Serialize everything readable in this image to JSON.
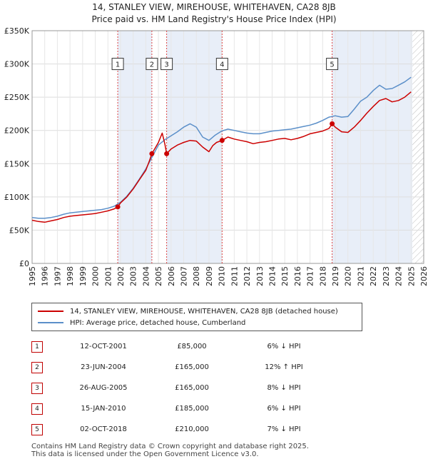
{
  "chart_data": {
    "type": "line",
    "title": "14, STANLEY VIEW, MIREHOUSE, WHITEHAVEN, CA28 8JB",
    "subtitle": "Price paid vs. HM Land Registry's House Price Index (HPI)",
    "xlim": [
      1995,
      2026
    ],
    "ylim": [
      0,
      350000
    ],
    "x_ticks": [
      1995,
      1996,
      1997,
      1998,
      1999,
      2000,
      2001,
      2002,
      2003,
      2004,
      2005,
      2006,
      2007,
      2008,
      2009,
      2010,
      2011,
      2012,
      2013,
      2014,
      2015,
      2016,
      2017,
      2018,
      2019,
      2020,
      2021,
      2022,
      2023,
      2024,
      2025,
      2026
    ],
    "y_ticks": [
      0,
      50000,
      100000,
      150000,
      200000,
      250000,
      300000,
      350000
    ],
    "y_tick_labels": [
      "£0",
      "£50K",
      "£100K",
      "£150K",
      "£200K",
      "£250K",
      "£300K",
      "£350K"
    ],
    "forecast_from": 2025.1,
    "series": [
      {
        "name": "14, STANLEY VIEW, MIREHOUSE, WHITEHAVEN, CA28 8JB (detached house)",
        "color": "#cc0000",
        "x": [
          1995,
          1995.5,
          1996,
          1996.5,
          1997,
          1997.5,
          1998,
          1998.5,
          1999,
          1999.5,
          2000,
          2000.5,
          2001,
          2001.5,
          2001.78,
          2002,
          2002.5,
          2003,
          2003.5,
          2004,
          2004.3,
          2004.48,
          2004.7,
          2005,
          2005.3,
          2005.5,
          2005.65,
          2006,
          2006.5,
          2007,
          2007.5,
          2008,
          2008.5,
          2009,
          2009.3,
          2009.6,
          2010.04,
          2010.5,
          2011,
          2011.5,
          2012,
          2012.5,
          2013,
          2013.5,
          2014,
          2014.5,
          2015,
          2015.5,
          2016,
          2016.5,
          2017,
          2017.5,
          2018,
          2018.5,
          2018.75,
          2019,
          2019.5,
          2020,
          2020.5,
          2021,
          2021.5,
          2022,
          2022.5,
          2023,
          2023.5,
          2024,
          2024.5,
          2025
        ],
        "values": [
          65000,
          63000,
          62000,
          64000,
          66000,
          69000,
          71000,
          72000,
          73000,
          74000,
          75000,
          77000,
          79000,
          82000,
          85000,
          91000,
          100000,
          112000,
          126000,
          140000,
          155000,
          165000,
          172000,
          182000,
          196000,
          180000,
          165000,
          172000,
          178000,
          182000,
          185000,
          184000,
          175000,
          168000,
          177000,
          182000,
          185000,
          190000,
          187000,
          185000,
          183000,
          180000,
          182000,
          183000,
          185000,
          187000,
          188000,
          186000,
          188000,
          191000,
          195000,
          197000,
          199000,
          203000,
          210000,
          205000,
          198000,
          197000,
          205000,
          215000,
          226000,
          236000,
          245000,
          248000,
          243000,
          245000,
          250000,
          258000
        ]
      },
      {
        "name": "HPI: Average price, detached house, Cumberland",
        "color": "#5b8fc9",
        "x": [
          1995,
          1995.5,
          1996,
          1996.5,
          1997,
          1997.5,
          1998,
          1998.5,
          1999,
          1999.5,
          2000,
          2000.5,
          2001,
          2001.5,
          2002,
          2002.5,
          2003,
          2003.5,
          2004,
          2004.5,
          2005,
          2005.5,
          2006,
          2006.5,
          2007,
          2007.5,
          2008,
          2008.5,
          2009,
          2009.5,
          2010,
          2010.5,
          2011,
          2011.5,
          2012,
          2012.5,
          2013,
          2013.5,
          2014,
          2014.5,
          2015,
          2015.5,
          2016,
          2016.5,
          2017,
          2017.5,
          2018,
          2018.5,
          2019,
          2019.5,
          2020,
          2020.5,
          2021,
          2021.5,
          2022,
          2022.5,
          2023,
          2023.5,
          2024,
          2024.5,
          2025
        ],
        "values": [
          69000,
          68000,
          68000,
          69000,
          71000,
          74000,
          76000,
          77000,
          78000,
          79000,
          80000,
          81000,
          83000,
          86000,
          92000,
          101000,
          113000,
          127000,
          142000,
          160000,
          178000,
          186000,
          192000,
          198000,
          205000,
          210000,
          205000,
          190000,
          185000,
          193000,
          199000,
          202000,
          200000,
          198000,
          196000,
          195000,
          195000,
          197000,
          199000,
          200000,
          201000,
          202000,
          204000,
          206000,
          208000,
          211000,
          215000,
          220000,
          222000,
          220000,
          221000,
          232000,
          244000,
          250000,
          260000,
          268000,
          262000,
          263000,
          268000,
          273000,
          280000
        ]
      }
    ],
    "sales": [
      {
        "id": "1",
        "date": "12-OCT-2001",
        "x": 2001.78,
        "price": 85000,
        "price_label": "£85,000",
        "hpi": "6% ↓ HPI"
      },
      {
        "id": "2",
        "date": "23-JUN-2004",
        "x": 2004.48,
        "price": 165000,
        "price_label": "£165,000",
        "hpi": "12% ↑ HPI"
      },
      {
        "id": "3",
        "date": "26-AUG-2005",
        "x": 2005.65,
        "price": 165000,
        "price_label": "£165,000",
        "hpi": "8% ↓ HPI"
      },
      {
        "id": "4",
        "date": "15-JAN-2010",
        "x": 2010.04,
        "price": 185000,
        "price_label": "£185,000",
        "hpi": "6% ↓ HPI"
      },
      {
        "id": "5",
        "date": "02-OCT-2018",
        "x": 2018.75,
        "price": 210000,
        "price_label": "£210,000",
        "hpi": "7% ↓ HPI"
      }
    ],
    "marker_label_value": 300000
  },
  "footer": {
    "line1": "Contains HM Land Registry data © Crown copyright and database right 2025.",
    "line2": "This data is licensed under the Open Government Licence v3.0."
  }
}
